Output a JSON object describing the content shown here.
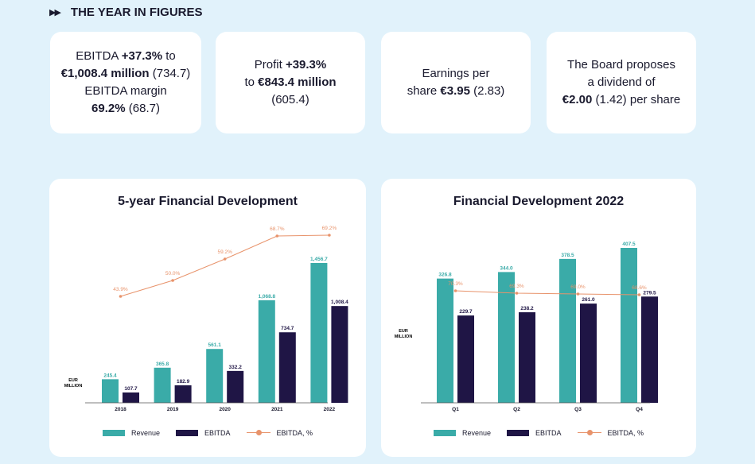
{
  "header": {
    "title": "THE YEAR IN FIGURES",
    "arrows": "▶▶"
  },
  "cards": [
    {
      "lines": [
        [
          {
            "t": "EBITDA ",
            "b": false
          },
          {
            "t": "+37.3%",
            "b": true
          },
          {
            "t": " to",
            "b": false
          }
        ],
        [
          {
            "t": "€1,008.4 million",
            "b": true
          },
          {
            "t": " (734.7)",
            "b": false
          }
        ],
        [
          {
            "t": "EBITDA margin",
            "b": false
          }
        ],
        [
          {
            "t": "69.2%",
            "b": true
          },
          {
            "t": " (68.7)",
            "b": false
          }
        ]
      ]
    },
    {
      "lines": [
        [
          {
            "t": "Profit ",
            "b": false
          },
          {
            "t": "+39.3%",
            "b": true
          }
        ],
        [
          {
            "t": "to ",
            "b": false
          },
          {
            "t": "€843.4 million",
            "b": true
          }
        ],
        [
          {
            "t": "(605.4)",
            "b": false
          }
        ]
      ]
    },
    {
      "lines": [
        [
          {
            "t": "Earnings per",
            "b": false
          }
        ],
        [
          {
            "t": "share ",
            "b": false
          },
          {
            "t": "€3.95",
            "b": true
          },
          {
            "t": " (2.83)",
            "b": false
          }
        ]
      ]
    },
    {
      "lines": [
        [
          {
            "t": "The Board proposes",
            "b": false
          }
        ],
        [
          {
            "t": "a dividend of",
            "b": false
          }
        ],
        [
          {
            "t": "€2.00",
            "b": true
          },
          {
            "t": " (1.42) per share",
            "b": false
          }
        ]
      ]
    }
  ],
  "colors": {
    "revenue": "#3aaba8",
    "ebitda": "#1f1545",
    "margin": "#e8936b"
  },
  "chart_data": [
    {
      "type": "bar",
      "title": "5-year Financial Development",
      "ylabel": "EUR MILLION",
      "categories": [
        "2018",
        "2019",
        "2020",
        "2021",
        "2022"
      ],
      "series": [
        {
          "name": "Revenue",
          "values": [
            245.4,
            365.8,
            561.1,
            1068.8,
            1456.7
          ],
          "labels": [
            "245.4",
            "365.8",
            "561.1",
            "1,068.8",
            "1,456.7"
          ]
        },
        {
          "name": "EBITDA",
          "values": [
            107.7,
            182.9,
            332.2,
            734.7,
            1008.4
          ],
          "labels": [
            "107.7",
            "182.9",
            "332.2",
            "734.7",
            "1,008.4"
          ]
        }
      ],
      "line": {
        "name": "EBITDA, %",
        "values": [
          43.9,
          50.0,
          59.2,
          68.7,
          69.2
        ],
        "labels": [
          "43.9%",
          "50.0%",
          "59.2%",
          "68.7%",
          "69.2%"
        ]
      },
      "ylim": [
        0,
        1700
      ],
      "grid": false,
      "legend": "bottom"
    },
    {
      "type": "bar",
      "title": "Financial Development 2022",
      "ylabel": "EUR MILLION",
      "categories": [
        "Q1",
        "Q2",
        "Q3",
        "Q4"
      ],
      "series": [
        {
          "name": "Revenue",
          "values": [
            326.8,
            344.0,
            378.5,
            407.5
          ],
          "labels": [
            "326.8",
            "344.0",
            "378.5",
            "407.5"
          ]
        },
        {
          "name": "EBITDA",
          "values": [
            229.7,
            238.2,
            261.0,
            279.5
          ],
          "labels": [
            "229.7",
            "238.2",
            "261.0",
            "279.5"
          ]
        }
      ],
      "line": {
        "name": "EBITDA, %",
        "values": [
          70.3,
          69.3,
          69.0,
          68.6
        ],
        "labels": [
          "70.3%",
          "69.3%",
          "69.0%",
          "68.6%"
        ]
      },
      "ylim": [
        0,
        500
      ],
      "grid": false,
      "legend": "bottom"
    }
  ]
}
